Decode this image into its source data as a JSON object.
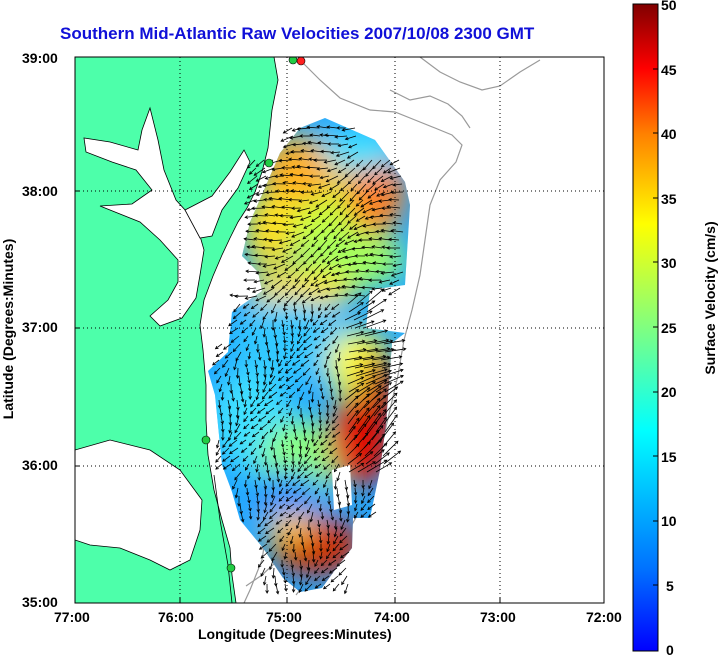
{
  "title": "Southern Mid-Atlantic Raw Velocities 2007/10/08 2300 GMT",
  "axes": {
    "xlabel": "Longitude (Degrees:Minutes)",
    "ylabel": "Latitude (Degrees:Minutes)",
    "xticks": [
      "77:00",
      "76:00",
      "75:00",
      "74:00",
      "73:00",
      "72:00"
    ],
    "yticks": [
      "39:00",
      "38:00",
      "37:00",
      "36:00",
      "35:00"
    ]
  },
  "colorbar": {
    "label": "Surface Velocity (cm/s)",
    "ticks": [
      "50",
      "45",
      "40",
      "35",
      "30",
      "25",
      "20",
      "15",
      "10",
      "5",
      "0"
    ],
    "range": [
      0,
      50
    ],
    "colormap": "jet"
  },
  "colors": {
    "land": "#4dffaa",
    "title": "#1010d8",
    "station": "#22cc44",
    "station_active": "#ff2020"
  }
}
